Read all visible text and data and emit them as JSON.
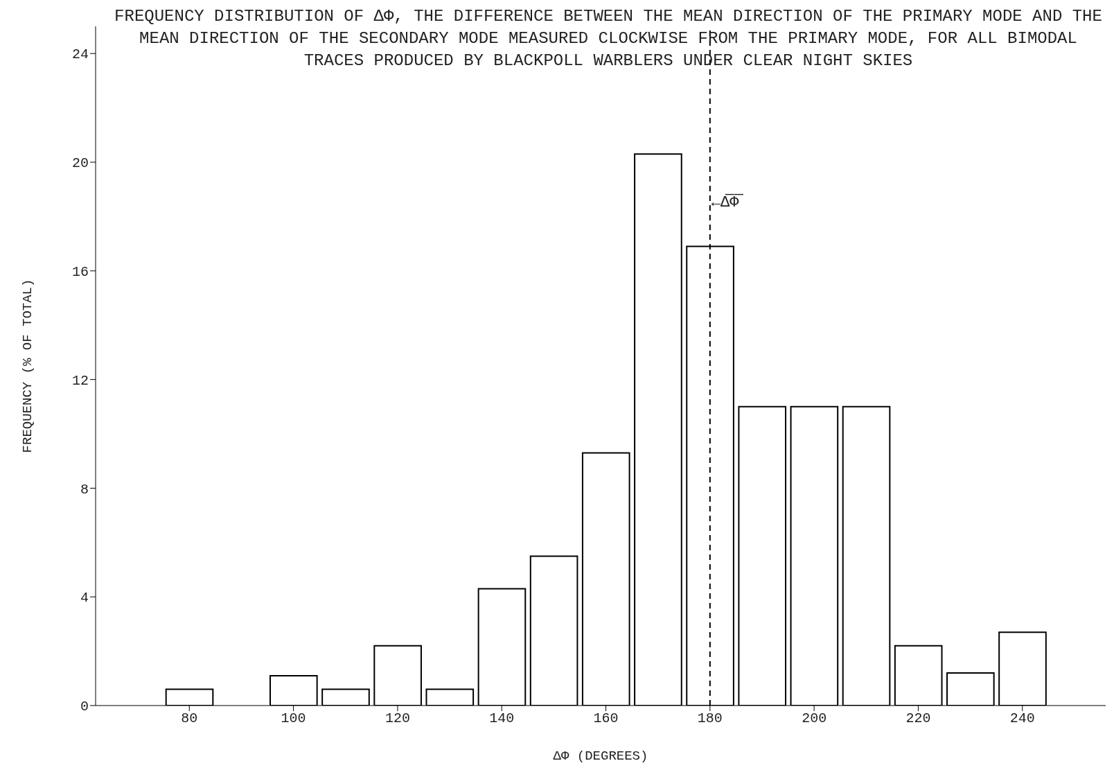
{
  "chart_data": {
    "type": "histogram",
    "title": "FREQUENCY DISTRIBUTION OF ΔΦ, THE DIFFERENCE BETWEEN THE MEAN DIRECTION OF THE PRIMARY MODE AND THE MEAN DIRECTION OF THE SECONDARY MODE MEASURED CLOCKWISE FROM THE PRIMARY MODE, FOR ALL BIMODAL TRACES PRODUCED BY BLACKPOLL WARBLERS UNDER CLEAR NIGHT SKIES",
    "xlabel": "ΔΦ (DEGREES)",
    "ylabel": "FREQUENCY (% OF TOTAL)",
    "bins": [
      75,
      85,
      95,
      105,
      115,
      125,
      135,
      145,
      155,
      165,
      175,
      185,
      195,
      205,
      215,
      225,
      235,
      245
    ],
    "values": [
      0.6,
      0,
      1.1,
      0.6,
      2.2,
      0.6,
      4.3,
      5.5,
      9.3,
      20.3,
      16.9,
      11.0,
      11.0,
      11.0,
      2.2,
      1.2,
      2.7
    ],
    "color": "#000000",
    "xlim": [
      62,
      256
    ],
    "xticks": [
      80,
      100,
      120,
      140,
      160,
      180,
      200,
      220,
      240
    ],
    "ylim": [
      0,
      25
    ],
    "yticks": [
      0,
      4,
      8,
      12,
      16,
      20,
      24
    ],
    "ref_lines": [
      {
        "axis": "x",
        "value": 180,
        "label": "←Δ̅Φ̅",
        "line_style": "dashed",
        "color": "#000000"
      }
    ],
    "grid": false,
    "legend": false
  }
}
